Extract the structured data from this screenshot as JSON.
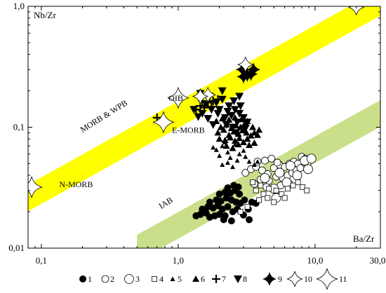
{
  "chart_data": {
    "type": "scatter",
    "title": "",
    "xlabel": "Ba/Zr",
    "ylabel": "Nb/Zr",
    "xscale": "log",
    "yscale": "log",
    "xlim": [
      0.08,
      30.0
    ],
    "ylim": [
      0.01,
      1.0
    ],
    "x_ticks": [
      {
        "value": 0.1,
        "label": "0,1"
      },
      {
        "value": 1.0,
        "label": "1,0"
      },
      {
        "value": 10.0,
        "label": "10,0"
      },
      {
        "value": 30.0,
        "label": "30,0"
      }
    ],
    "y_ticks": [
      {
        "value": 0.01,
        "label": "0,01"
      },
      {
        "value": 0.1,
        "label": "0,1"
      },
      {
        "value": 1.0,
        "label": "1,0"
      }
    ],
    "grid": false,
    "legend_position": "bottom",
    "bands": [
      {
        "name": "MORB & WPB",
        "color": "#ffff00",
        "start": [
          0.08,
          0.026
        ],
        "end": [
          30.0,
          1.08
        ],
        "width": 0.22
      },
      {
        "name": "IAB",
        "color": "#c9df8a",
        "start": [
          0.5,
          0.01
        ],
        "end": [
          30.0,
          0.13
        ],
        "width": 0.22
      }
    ],
    "annotations": [
      {
        "text": "N-MORB",
        "x": 0.135,
        "y": 0.032
      },
      {
        "text": "E-MORB",
        "x": 0.9,
        "y": 0.09
      },
      {
        "text": "OIB",
        "x": 0.85,
        "y": 0.165
      },
      {
        "text": "MORB & WPB",
        "x": 0.2,
        "y": 0.09,
        "angle": -32
      },
      {
        "text": "IAB",
        "x": 0.75,
        "y": 0.021,
        "angle": -32
      }
    ],
    "series": [
      {
        "name": "1",
        "marker": "filled-circle",
        "points": [
          [
            1.35,
            0.0185
          ],
          [
            1.45,
            0.019
          ],
          [
            1.6,
            0.0195
          ],
          [
            1.7,
            0.018
          ],
          [
            1.85,
            0.0185
          ],
          [
            2.0,
            0.019
          ],
          [
            2.2,
            0.0185
          ],
          [
            1.5,
            0.021
          ],
          [
            1.65,
            0.022
          ],
          [
            1.8,
            0.0215
          ],
          [
            1.95,
            0.0225
          ],
          [
            2.1,
            0.021
          ],
          [
            2.3,
            0.022
          ],
          [
            2.5,
            0.02
          ],
          [
            2.7,
            0.021
          ],
          [
            1.7,
            0.024
          ],
          [
            1.9,
            0.025
          ],
          [
            2.05,
            0.0245
          ],
          [
            2.25,
            0.026
          ],
          [
            2.45,
            0.025
          ],
          [
            2.65,
            0.024
          ],
          [
            2.85,
            0.0235
          ],
          [
            3.05,
            0.025
          ],
          [
            2.0,
            0.028
          ],
          [
            2.2,
            0.029
          ],
          [
            2.4,
            0.0285
          ],
          [
            2.6,
            0.03
          ],
          [
            2.8,
            0.028
          ],
          [
            2.3,
            0.0315
          ],
          [
            2.55,
            0.033
          ],
          [
            2.75,
            0.032
          ],
          [
            2.15,
            0.0172
          ],
          [
            2.45,
            0.0168
          ],
          [
            3.25,
            0.021
          ],
          [
            3.45,
            0.024
          ],
          [
            3.0,
            0.0188
          ],
          [
            3.3,
            0.0172
          ],
          [
            3.7,
            0.0235
          ]
        ]
      },
      {
        "name": "2",
        "marker": "open-circle",
        "points": [
          [
            3.1,
            0.042
          ],
          [
            3.4,
            0.045
          ],
          [
            3.7,
            0.047
          ],
          [
            4.1,
            0.044
          ],
          [
            4.5,
            0.041
          ],
          [
            5.0,
            0.046
          ],
          [
            5.5,
            0.049
          ],
          [
            6.0,
            0.047
          ],
          [
            6.5,
            0.05
          ],
          [
            7.0,
            0.052
          ],
          [
            7.5,
            0.05
          ],
          [
            3.8,
            0.052
          ],
          [
            4.3,
            0.053
          ],
          [
            4.8,
            0.055
          ],
          [
            5.3,
            0.051
          ],
          [
            8.0,
            0.057
          ],
          [
            8.5,
            0.055
          ],
          [
            4.0,
            0.037
          ],
          [
            4.6,
            0.036
          ],
          [
            5.2,
            0.039
          ],
          [
            5.8,
            0.038
          ],
          [
            6.3,
            0.04
          ],
          [
            6.8,
            0.042
          ],
          [
            7.3,
            0.044
          ],
          [
            3.6,
            0.034
          ],
          [
            6.5,
            0.034
          ],
          [
            7.8,
            0.046
          ],
          [
            8.8,
            0.05
          ],
          [
            4.4,
            0.032
          ],
          [
            5.6,
            0.033
          ]
        ]
      },
      {
        "name": "3",
        "marker": "open-circle-large",
        "points": [
          [
            5.5,
            0.042
          ],
          [
            6.6,
            0.048
          ],
          [
            8.4,
            0.053
          ],
          [
            7.4,
            0.04
          ],
          [
            6.2,
            0.035
          ],
          [
            5.0,
            0.031
          ],
          [
            4.3,
            0.038
          ],
          [
            8.9,
            0.045
          ],
          [
            5.2,
            0.026
          ],
          [
            9.4,
            0.055
          ]
        ]
      },
      {
        "name": "4",
        "marker": "open-square",
        "points": [
          [
            3.5,
            0.035
          ],
          [
            4.0,
            0.033
          ],
          [
            4.6,
            0.031
          ],
          [
            5.2,
            0.03
          ],
          [
            5.7,
            0.028
          ],
          [
            6.3,
            0.031
          ],
          [
            6.9,
            0.033
          ],
          [
            7.5,
            0.035
          ],
          [
            8.1,
            0.032
          ],
          [
            8.7,
            0.03
          ],
          [
            4.2,
            0.028
          ],
          [
            3.9,
            0.025
          ],
          [
            4.5,
            0.026
          ],
          [
            5.0,
            0.024
          ],
          [
            3.2,
            0.022
          ],
          [
            3.7,
            0.03
          ],
          [
            6.0,
            0.026
          ],
          [
            2.85,
            0.02
          ]
        ]
      },
      {
        "name": "5",
        "marker": "small-filled-triangle",
        "points": [
          [
            1.9,
            0.065
          ],
          [
            2.1,
            0.07
          ],
          [
            2.3,
            0.062
          ],
          [
            2.5,
            0.068
          ],
          [
            2.2,
            0.075
          ],
          [
            2.6,
            0.072
          ],
          [
            2.0,
            0.058
          ],
          [
            2.4,
            0.056
          ],
          [
            2.8,
            0.06
          ],
          [
            3.0,
            0.064
          ],
          [
            1.8,
            0.068
          ],
          [
            2.7,
            0.053
          ],
          [
            3.1,
            0.057
          ],
          [
            2.1,
            0.049
          ],
          [
            2.5,
            0.047
          ],
          [
            2.3,
            0.051
          ],
          [
            3.3,
            0.052
          ],
          [
            3.6,
            0.049
          ],
          [
            3.8,
            0.052
          ]
        ]
      },
      {
        "name": "6",
        "marker": "filled-triangle",
        "points": [
          [
            1.95,
            0.09
          ],
          [
            2.15,
            0.095
          ],
          [
            2.35,
            0.086
          ],
          [
            2.55,
            0.092
          ],
          [
            2.75,
            0.088
          ],
          [
            2.95,
            0.094
          ],
          [
            3.15,
            0.09
          ],
          [
            2.05,
            0.1
          ],
          [
            2.25,
            0.105
          ],
          [
            2.45,
            0.098
          ],
          [
            2.65,
            0.103
          ],
          [
            2.85,
            0.1
          ],
          [
            3.05,
            0.106
          ],
          [
            2.0,
            0.08
          ],
          [
            2.2,
            0.078
          ],
          [
            2.4,
            0.082
          ],
          [
            2.6,
            0.077
          ],
          [
            2.8,
            0.081
          ],
          [
            3.2,
            0.08
          ],
          [
            3.4,
            0.085
          ],
          [
            3.6,
            0.09
          ],
          [
            3.8,
            0.086
          ],
          [
            1.9,
            0.112
          ],
          [
            2.1,
            0.118
          ],
          [
            2.35,
            0.115
          ],
          [
            2.6,
            0.12
          ],
          [
            2.9,
            0.116
          ],
          [
            3.2,
            0.112
          ],
          [
            3.5,
            0.1
          ],
          [
            3.9,
            0.095
          ],
          [
            2.25,
            0.07
          ],
          [
            2.5,
            0.067
          ],
          [
            2.75,
            0.072
          ],
          [
            3.0,
            0.075
          ],
          [
            3.3,
            0.071
          ],
          [
            3.6,
            0.074
          ]
        ]
      },
      {
        "name": "7",
        "marker": "plus",
        "points": [
          [
            0.7,
            0.12
          ],
          [
            1.35,
            0.14
          ],
          [
            1.45,
            0.15
          ],
          [
            1.55,
            0.145
          ],
          [
            1.65,
            0.16
          ],
          [
            1.8,
            0.165
          ],
          [
            1.95,
            0.17
          ],
          [
            1.5,
            0.165
          ],
          [
            1.75,
            0.148
          ]
        ]
      },
      {
        "name": "8",
        "marker": "filled-triangle-down",
        "points": [
          [
            1.45,
            0.19
          ],
          [
            1.7,
            0.18
          ],
          [
            1.9,
            0.16
          ],
          [
            2.1,
            0.17
          ],
          [
            2.35,
            0.15
          ],
          [
            2.6,
            0.14
          ],
          [
            2.8,
            0.13
          ],
          [
            3.0,
            0.12
          ],
          [
            3.2,
            0.11
          ],
          [
            2.2,
            0.12
          ],
          [
            2.45,
            0.125
          ],
          [
            2.7,
            0.11
          ],
          [
            2.0,
            0.14
          ],
          [
            1.6,
            0.155
          ],
          [
            1.75,
            0.14
          ],
          [
            1.95,
            0.13
          ],
          [
            2.25,
            0.105
          ],
          [
            2.5,
            0.1
          ],
          [
            2.3,
            0.135
          ],
          [
            2.55,
            0.165
          ],
          [
            2.85,
            0.15
          ],
          [
            2.1,
            0.2
          ],
          [
            1.5,
            0.13
          ],
          [
            1.8,
            0.105
          ],
          [
            2.65,
            0.09
          ],
          [
            3.1,
            0.098
          ],
          [
            1.3,
            0.14
          ],
          [
            1.4,
            0.122
          ],
          [
            2.8,
            0.18
          ],
          [
            1.65,
            0.118
          ]
        ]
      },
      {
        "name": "9",
        "marker": "filled-star",
        "points": [
          [
            2.95,
            0.3
          ],
          [
            3.2,
            0.27
          ],
          [
            3.4,
            0.275
          ],
          [
            3.55,
            0.3
          ],
          [
            3.0,
            0.262
          ]
        ]
      },
      {
        "name": "10",
        "marker": "open-star",
        "points": [
          [
            3.1,
            0.33
          ],
          [
            1.65,
            0.185
          ],
          [
            1.45,
            0.18
          ],
          [
            20.0,
            0.98
          ]
        ]
      },
      {
        "name": "11",
        "marker": "open-star-large",
        "points": [
          [
            0.085,
            0.032
          ],
          [
            0.78,
            0.11
          ],
          [
            1.0,
            0.175
          ]
        ]
      }
    ]
  }
}
